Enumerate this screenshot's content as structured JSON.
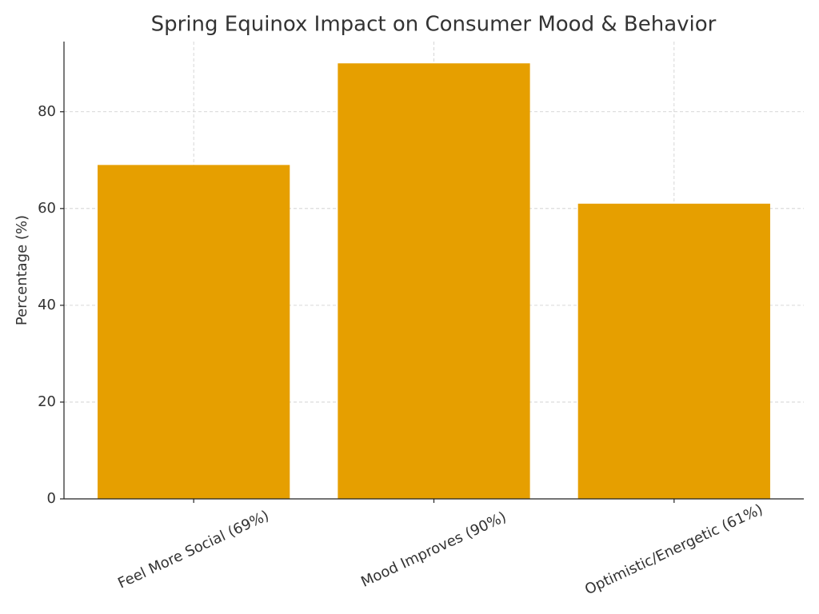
{
  "chart_data": {
    "type": "bar",
    "title": "Spring Equinox Impact on Consumer Mood & Behavior",
    "ylabel": "Percentage (%)",
    "categories": [
      "Feel More Social (69%)",
      "Mood Improves (90%)",
      "Optimistic/Energetic (61%)"
    ],
    "values": [
      69,
      90,
      61
    ],
    "color": "#e69f00",
    "ylim": [
      0,
      94.5
    ],
    "yticks": [
      0,
      20,
      40,
      60,
      80
    ],
    "grid": true
  }
}
